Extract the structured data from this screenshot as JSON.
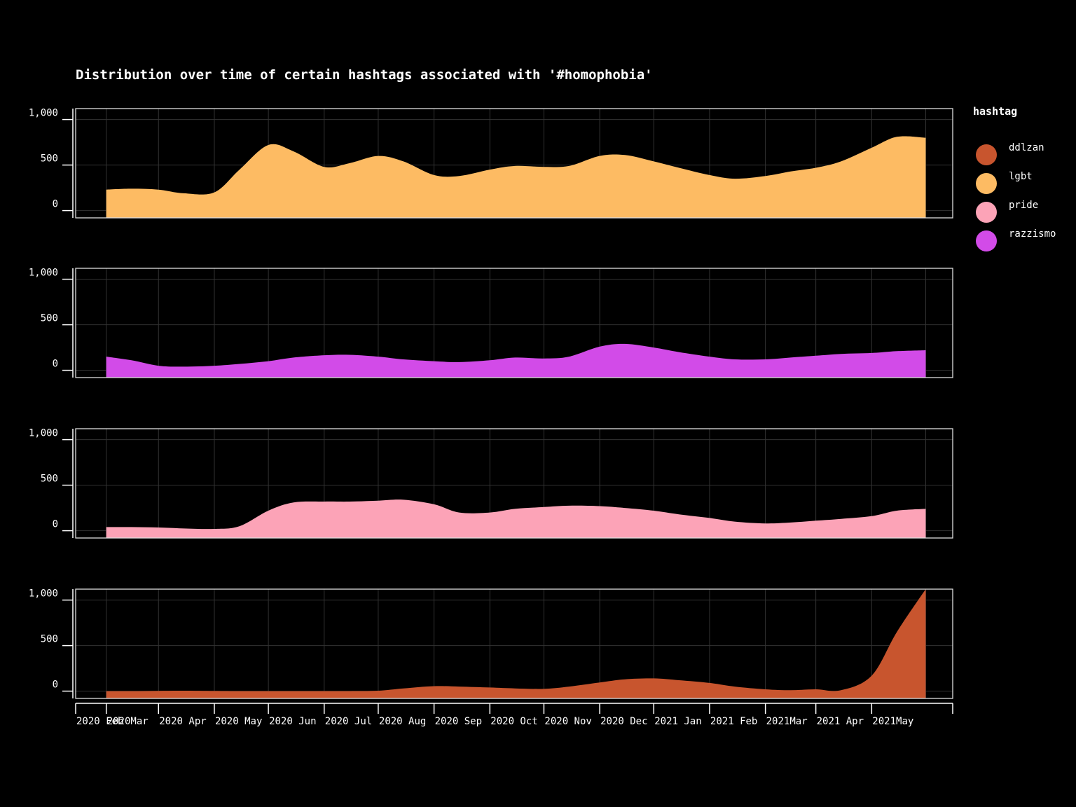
{
  "chart_data": {
    "type": "area",
    "title": "Distribution over time of certain hashtags associated with '#homophobia'",
    "xlabel": "",
    "ylabel": "",
    "x": [
      "2020-02-01",
      "2020-03-01",
      "2020-04-01",
      "2020-05-01",
      "2020-06-01",
      "2020-07-01",
      "2020-08-01",
      "2020-09-01",
      "2020-10-01",
      "2020-11-01",
      "2020-12-01",
      "2021-01-01",
      "2021-02-01",
      "2021-03-01",
      "2021-04-01",
      "2021-05-01"
    ],
    "x_tick_labels": [
      "2020 Feb",
      "2020Mar",
      "2020 Apr",
      "2020 May",
      "2020 Jun",
      "2020 Jul",
      "2020 Aug",
      "2020 Sep",
      "2020 Oct",
      "2020 Nov",
      "2020 Dec",
      "2021 Jan",
      "2021 Feb",
      "2021Mar",
      "2021 Apr",
      "2021May"
    ],
    "y_tick_labels": [
      "0",
      "500",
      "1,000"
    ],
    "y_ticks": [
      0,
      500,
      1000
    ],
    "ylim": [
      -80,
      1120
    ],
    "grid": true,
    "legend": {
      "title": "hashtag",
      "position": "right"
    },
    "series": [
      {
        "name": "lgbt",
        "color": "#FDBB63",
        "points": [
          [
            "2020-02-01",
            230
          ],
          [
            "2020-02-15",
            240
          ],
          [
            "2020-03-01",
            230
          ],
          [
            "2020-03-15",
            190
          ],
          [
            "2020-04-01",
            200
          ],
          [
            "2020-04-15",
            450
          ],
          [
            "2020-05-01",
            720
          ],
          [
            "2020-05-15",
            650
          ],
          [
            "2020-06-01",
            480
          ],
          [
            "2020-06-15",
            520
          ],
          [
            "2020-07-01",
            600
          ],
          [
            "2020-07-15",
            540
          ],
          [
            "2020-08-01",
            390
          ],
          [
            "2020-08-15",
            380
          ],
          [
            "2020-09-01",
            450
          ],
          [
            "2020-09-15",
            490
          ],
          [
            "2020-10-01",
            480
          ],
          [
            "2020-10-15",
            490
          ],
          [
            "2020-11-01",
            600
          ],
          [
            "2020-11-15",
            610
          ],
          [
            "2020-12-01",
            540
          ],
          [
            "2020-12-15",
            470
          ],
          [
            "2021-01-01",
            390
          ],
          [
            "2021-01-15",
            350
          ],
          [
            "2021-02-01",
            380
          ],
          [
            "2021-02-15",
            430
          ],
          [
            "2021-03-01",
            470
          ],
          [
            "2021-03-15",
            540
          ],
          [
            "2021-04-01",
            690
          ],
          [
            "2021-04-15",
            810
          ],
          [
            "2021-05-01",
            800
          ]
        ]
      },
      {
        "name": "razzismo",
        "color": "#D24BE8",
        "points": [
          [
            "2020-02-01",
            150
          ],
          [
            "2020-02-15",
            110
          ],
          [
            "2020-03-01",
            50
          ],
          [
            "2020-03-15",
            40
          ],
          [
            "2020-04-01",
            50
          ],
          [
            "2020-04-15",
            70
          ],
          [
            "2020-05-01",
            100
          ],
          [
            "2020-05-15",
            140
          ],
          [
            "2020-06-01",
            165
          ],
          [
            "2020-06-15",
            170
          ],
          [
            "2020-07-01",
            150
          ],
          [
            "2020-07-15",
            120
          ],
          [
            "2020-08-01",
            100
          ],
          [
            "2020-08-15",
            90
          ],
          [
            "2020-09-01",
            110
          ],
          [
            "2020-09-15",
            140
          ],
          [
            "2020-10-01",
            130
          ],
          [
            "2020-10-15",
            150
          ],
          [
            "2020-11-01",
            260
          ],
          [
            "2020-11-15",
            290
          ],
          [
            "2020-12-01",
            250
          ],
          [
            "2020-12-15",
            200
          ],
          [
            "2021-01-01",
            150
          ],
          [
            "2021-01-15",
            120
          ],
          [
            "2021-02-01",
            120
          ],
          [
            "2021-02-15",
            140
          ],
          [
            "2021-03-01",
            160
          ],
          [
            "2021-03-15",
            180
          ],
          [
            "2021-04-01",
            190
          ],
          [
            "2021-04-15",
            210
          ],
          [
            "2021-05-01",
            220
          ]
        ]
      },
      {
        "name": "pride",
        "color": "#FCA3B7",
        "points": [
          [
            "2020-02-01",
            40
          ],
          [
            "2020-02-15",
            40
          ],
          [
            "2020-03-01",
            35
          ],
          [
            "2020-03-15",
            25
          ],
          [
            "2020-04-01",
            20
          ],
          [
            "2020-04-15",
            50
          ],
          [
            "2020-05-01",
            220
          ],
          [
            "2020-05-15",
            310
          ],
          [
            "2020-06-01",
            320
          ],
          [
            "2020-06-15",
            320
          ],
          [
            "2020-07-01",
            330
          ],
          [
            "2020-07-15",
            340
          ],
          [
            "2020-08-01",
            290
          ],
          [
            "2020-08-15",
            200
          ],
          [
            "2020-09-01",
            200
          ],
          [
            "2020-09-15",
            240
          ],
          [
            "2020-10-01",
            260
          ],
          [
            "2020-10-15",
            275
          ],
          [
            "2020-11-01",
            270
          ],
          [
            "2020-11-15",
            250
          ],
          [
            "2020-12-01",
            220
          ],
          [
            "2020-12-15",
            180
          ],
          [
            "2021-01-01",
            140
          ],
          [
            "2021-01-15",
            100
          ],
          [
            "2021-02-01",
            80
          ],
          [
            "2021-02-15",
            90
          ],
          [
            "2021-03-01",
            110
          ],
          [
            "2021-03-15",
            130
          ],
          [
            "2021-04-01",
            160
          ],
          [
            "2021-04-15",
            220
          ],
          [
            "2021-05-01",
            240
          ]
        ]
      },
      {
        "name": "ddlzan",
        "color": "#C8552E",
        "points": [
          [
            "2020-02-01",
            0
          ],
          [
            "2020-02-15",
            0
          ],
          [
            "2020-03-01",
            3
          ],
          [
            "2020-03-15",
            5
          ],
          [
            "2020-04-01",
            2
          ],
          [
            "2020-04-15",
            0
          ],
          [
            "2020-05-01",
            0
          ],
          [
            "2020-05-15",
            0
          ],
          [
            "2020-06-01",
            0
          ],
          [
            "2020-06-15",
            0
          ],
          [
            "2020-07-01",
            5
          ],
          [
            "2020-07-15",
            30
          ],
          [
            "2020-08-01",
            55
          ],
          [
            "2020-08-15",
            50
          ],
          [
            "2020-09-01",
            40
          ],
          [
            "2020-09-15",
            30
          ],
          [
            "2020-10-01",
            25
          ],
          [
            "2020-10-15",
            50
          ],
          [
            "2020-11-01",
            95
          ],
          [
            "2020-11-15",
            130
          ],
          [
            "2020-12-01",
            140
          ],
          [
            "2020-12-15",
            120
          ],
          [
            "2021-01-01",
            90
          ],
          [
            "2021-01-15",
            50
          ],
          [
            "2021-02-01",
            20
          ],
          [
            "2021-02-15",
            10
          ],
          [
            "2021-03-01",
            20
          ],
          [
            "2021-03-15",
            10
          ],
          [
            "2021-04-01",
            170
          ],
          [
            "2021-04-15",
            650
          ],
          [
            "2021-05-01",
            1120
          ]
        ]
      }
    ],
    "legend_order": [
      "ddlzan",
      "lgbt",
      "pride",
      "razzismo"
    ]
  }
}
